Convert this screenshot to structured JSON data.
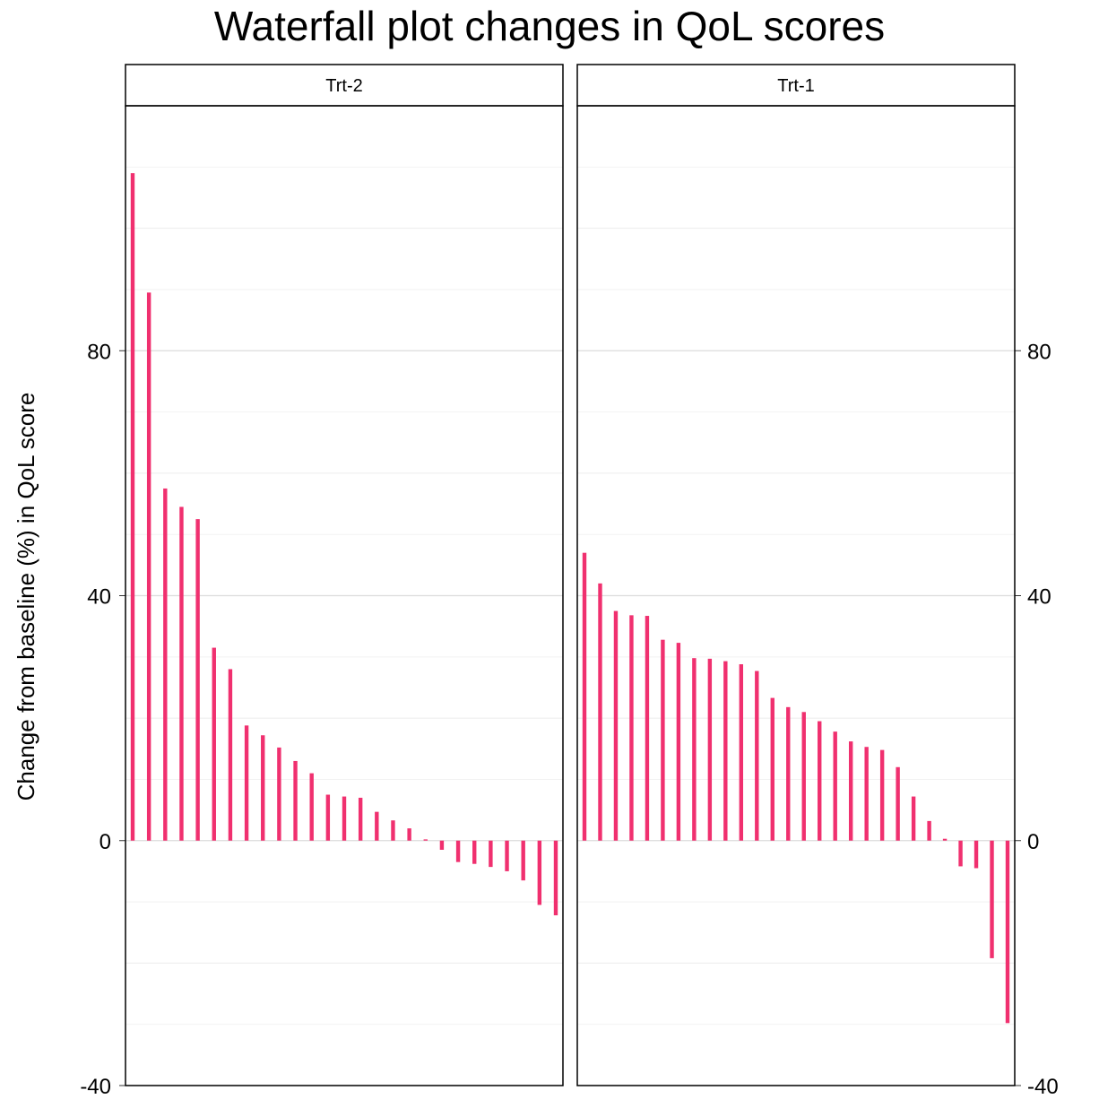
{
  "chart_data": {
    "type": "bar",
    "title": "Waterfall plot changes in QoL scores",
    "xlabel": "",
    "ylabel": "Change from baseline (%) in QoL score",
    "ylim": [
      -40,
      120
    ],
    "yticks": [
      -40,
      0,
      40,
      80
    ],
    "grid": true,
    "legend": "none",
    "bar_color": "#f0306f",
    "panels": [
      {
        "name": "Trt-2",
        "values": [
          109,
          89.5,
          57.5,
          54.5,
          52.5,
          31.5,
          28,
          18.8,
          17.2,
          15.2,
          13,
          11,
          7.5,
          7.2,
          7,
          4.7,
          3.3,
          2,
          0.2,
          -1.5,
          -3.5,
          -3.8,
          -4.3,
          -5,
          -6.5,
          -10.5,
          -12.2
        ]
      },
      {
        "name": "Trt-1",
        "values": [
          47,
          42,
          37.5,
          36.8,
          36.7,
          32.8,
          32.3,
          29.8,
          29.7,
          29.3,
          28.8,
          27.7,
          23.3,
          21.8,
          21,
          19.5,
          17.8,
          16.2,
          15.3,
          14.8,
          12,
          7.2,
          3.2,
          0.3,
          -4.2,
          -4.5,
          -19.2,
          -29.8
        ]
      }
    ]
  }
}
